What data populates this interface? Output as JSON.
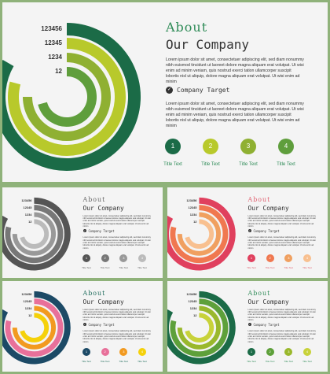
{
  "heading": {
    "about": "About",
    "company": "Our Company"
  },
  "paragraph": "Lorem ipsum dolor sit amet, consectetuer adipiscing elit, sed diam nonummy nibh euismod tincidunt ut laoreet dolore magna aliquam erat volutpat. Ut wisi enim ad minim veniam, quis nostrud exerci tation ullamcorper suscipit lobortis nisl ut aliquip, dolore magna aliquam erat volutpat. Ut wisi enim ad minim",
  "target": {
    "label": "Company Target",
    "text": "Lorem ipsum dolor sit amet, consectetuer adipiscing elit, sed diam nonummy nibh euismod tincidunt ut laoreet dolore magna aliquam erat volutpat. Ut wisi enim ad minim veniam, quis nostrud exerci tation ullamcorper suscipit lobortis nisl ut aliquip, dolore magna aliquam erat volutpat. Ut wisi enim ad minim"
  },
  "ring_labels": [
    "123456",
    "12345",
    "1234",
    "12"
  ],
  "targets": [
    {
      "number": "1",
      "title": "Title Text"
    },
    {
      "number": "2",
      "title": "Title Text"
    },
    {
      "number": "3",
      "title": "Title Text"
    },
    {
      "number": "4",
      "title": "Title Text"
    }
  ],
  "themes": {
    "green": {
      "accent": "#2e8b57",
      "colors": [
        "#1b6b47",
        "#b8c92b",
        "#8fb032",
        "#5f9e3c"
      ]
    },
    "gray": {
      "accent": "#666666",
      "colors": [
        "#555555",
        "#777777",
        "#999999",
        "#bbbbbb"
      ]
    },
    "red": {
      "accent": "#e06070",
      "colors": [
        "#e0405e",
        "#f07850",
        "#f0a060",
        "#f8c090"
      ]
    },
    "teal": {
      "accent": "#1c6a5a",
      "colors": [
        "#1c4a66",
        "#e8709a",
        "#f29a20",
        "#f5d10a"
      ]
    },
    "green2": {
      "accent": "#2e8b57",
      "colors": [
        "#1b6b47",
        "#5ea03a",
        "#9ab82c",
        "#c8d23a"
      ]
    }
  }
}
